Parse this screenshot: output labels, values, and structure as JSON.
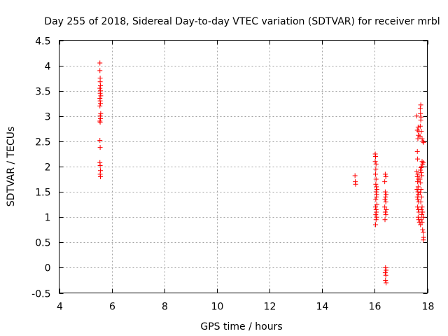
{
  "chart_data": {
    "type": "scatter",
    "title": "Day 255 of 2018, Sidereal Day-to-day VTEC variation (SDTVAR) for receiver mrbl",
    "xlabel": "GPS time / hours",
    "ylabel": "SDTVAR / TECUs",
    "xlim": [
      4,
      18
    ],
    "ylim": [
      -0.5,
      4.5
    ],
    "xticks": [
      "4",
      "6",
      "8",
      "10",
      "12",
      "14",
      "16",
      "18"
    ],
    "yticks": [
      "-0.5",
      "0",
      "0.5",
      "1",
      "1.5",
      "2",
      "2.5",
      "3",
      "3.5",
      "4",
      "4.5"
    ],
    "grid": true,
    "marker": "+",
    "color": "#ff0000",
    "series": [
      {
        "name": "SDTVAR",
        "points": [
          [
            5.55,
            4.05
          ],
          [
            5.55,
            3.9
          ],
          [
            5.56,
            3.75
          ],
          [
            5.56,
            3.68
          ],
          [
            5.57,
            3.6
          ],
          [
            5.55,
            3.55
          ],
          [
            5.57,
            3.5
          ],
          [
            5.56,
            3.45
          ],
          [
            5.58,
            3.4
          ],
          [
            5.55,
            3.35
          ],
          [
            5.56,
            3.3
          ],
          [
            5.57,
            3.25
          ],
          [
            5.55,
            3.2
          ],
          [
            5.58,
            3.05
          ],
          [
            5.56,
            3.0
          ],
          [
            5.57,
            2.95
          ],
          [
            5.55,
            2.9
          ],
          [
            5.56,
            2.88
          ],
          [
            5.55,
            2.52
          ],
          [
            5.56,
            2.38
          ],
          [
            5.55,
            2.08
          ],
          [
            5.56,
            2.02
          ],
          [
            5.57,
            1.92
          ],
          [
            5.56,
            1.85
          ],
          [
            5.57,
            1.8
          ],
          [
            15.25,
            1.82
          ],
          [
            15.26,
            1.7
          ],
          [
            15.27,
            1.65
          ],
          [
            16.02,
            2.25
          ],
          [
            16.03,
            2.2
          ],
          [
            16.02,
            2.1
          ],
          [
            16.05,
            2.05
          ],
          [
            16.04,
            1.95
          ],
          [
            16.03,
            1.85
          ],
          [
            16.05,
            1.75
          ],
          [
            16.04,
            1.65
          ],
          [
            16.06,
            1.6
          ],
          [
            16.08,
            1.55
          ],
          [
            16.05,
            1.5
          ],
          [
            16.07,
            1.45
          ],
          [
            16.06,
            1.4
          ],
          [
            16.04,
            1.35
          ],
          [
            16.08,
            1.25
          ],
          [
            16.03,
            1.2
          ],
          [
            16.05,
            1.15
          ],
          [
            16.06,
            1.1
          ],
          [
            16.04,
            1.05
          ],
          [
            16.07,
            1.0
          ],
          [
            16.05,
            0.95
          ],
          [
            16.03,
            0.85
          ],
          [
            16.4,
            1.85
          ],
          [
            16.42,
            1.8
          ],
          [
            16.38,
            1.7
          ],
          [
            16.4,
            1.5
          ],
          [
            16.43,
            1.45
          ],
          [
            16.41,
            1.4
          ],
          [
            16.39,
            1.35
          ],
          [
            16.42,
            1.3
          ],
          [
            16.38,
            1.2
          ],
          [
            16.44,
            1.15
          ],
          [
            16.4,
            1.1
          ],
          [
            16.42,
            1.05
          ],
          [
            16.39,
            0.95
          ],
          [
            16.41,
            0.0
          ],
          [
            16.43,
            -0.05
          ],
          [
            16.4,
            -0.1
          ],
          [
            16.42,
            -0.15
          ],
          [
            16.41,
            -0.25
          ],
          [
            16.43,
            -0.3
          ],
          [
            17.6,
            3.0
          ],
          [
            17.65,
            2.78
          ],
          [
            17.62,
            2.72
          ],
          [
            17.68,
            2.7
          ],
          [
            17.66,
            2.62
          ],
          [
            17.64,
            2.55
          ],
          [
            17.62,
            2.3
          ],
          [
            17.63,
            2.15
          ],
          [
            17.6,
            1.9
          ],
          [
            17.64,
            1.85
          ],
          [
            17.62,
            1.8
          ],
          [
            17.66,
            1.75
          ],
          [
            17.63,
            1.7
          ],
          [
            17.65,
            1.6
          ],
          [
            17.61,
            1.55
          ],
          [
            17.64,
            1.5
          ],
          [
            17.66,
            1.45
          ],
          [
            17.62,
            1.4
          ],
          [
            17.64,
            1.35
          ],
          [
            17.67,
            1.3
          ],
          [
            17.63,
            1.2
          ],
          [
            17.66,
            1.15
          ],
          [
            17.68,
            1.1
          ],
          [
            17.65,
            1.0
          ],
          [
            17.67,
            0.95
          ],
          [
            17.7,
            0.9
          ],
          [
            17.75,
            3.22
          ],
          [
            17.73,
            3.15
          ],
          [
            17.74,
            3.05
          ],
          [
            17.76,
            2.98
          ],
          [
            17.75,
            2.92
          ],
          [
            17.73,
            2.8
          ],
          [
            17.77,
            2.7
          ],
          [
            17.72,
            2.6
          ],
          [
            17.8,
            2.55
          ],
          [
            17.83,
            2.5
          ],
          [
            17.86,
            2.48
          ],
          [
            17.8,
            2.1
          ],
          [
            17.84,
            2.08
          ],
          [
            17.82,
            2.05
          ],
          [
            17.78,
            2.0
          ],
          [
            17.76,
            1.98
          ],
          [
            17.74,
            1.93
          ],
          [
            17.77,
            1.88
          ],
          [
            17.79,
            1.82
          ],
          [
            17.72,
            1.75
          ],
          [
            17.74,
            1.68
          ],
          [
            17.76,
            1.55
          ],
          [
            17.73,
            1.48
          ],
          [
            17.78,
            1.4
          ],
          [
            17.75,
            1.3
          ],
          [
            17.8,
            1.2
          ],
          [
            17.77,
            1.15
          ],
          [
            17.82,
            1.1
          ],
          [
            17.79,
            1.05
          ],
          [
            17.84,
            1.0
          ],
          [
            17.76,
            0.95
          ],
          [
            17.8,
            0.9
          ],
          [
            17.74,
            0.85
          ],
          [
            17.82,
            0.75
          ],
          [
            17.84,
            0.7
          ],
          [
            17.86,
            0.6
          ],
          [
            17.85,
            0.55
          ]
        ]
      }
    ]
  }
}
